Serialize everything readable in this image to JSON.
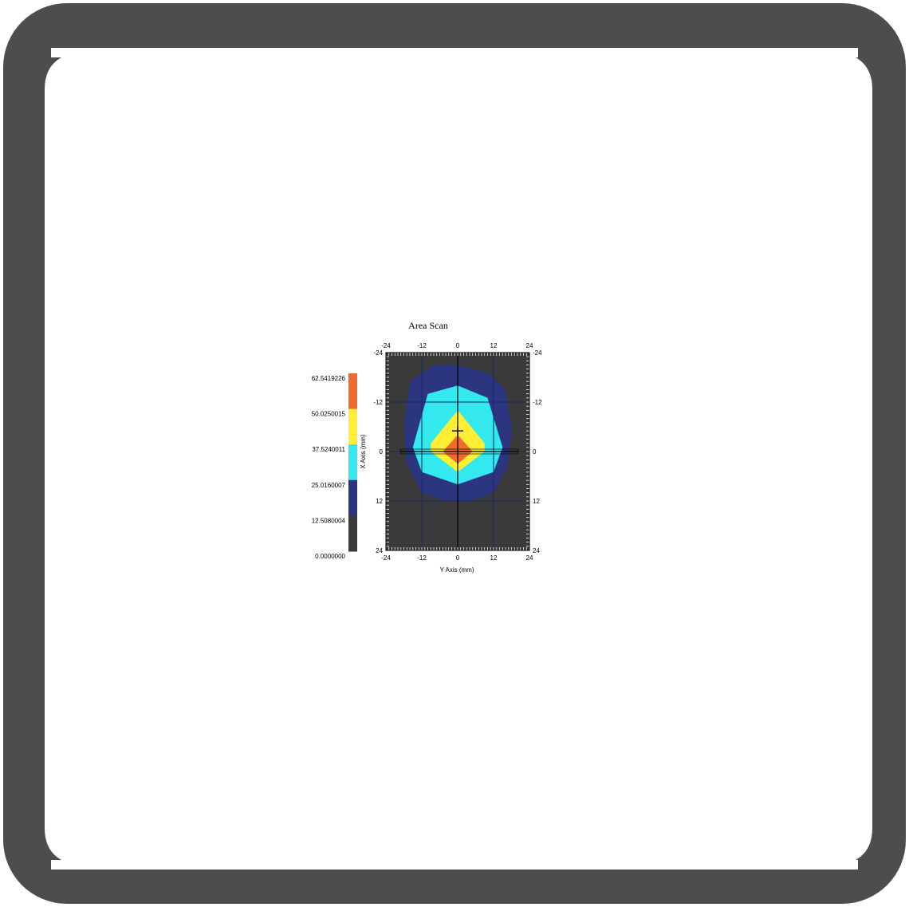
{
  "colors": {
    "frame": "#4d4d4d",
    "background": "#ffffff",
    "plot_background": "#3a3a3a",
    "levels": [
      "#3a3a3a",
      "#2c3580",
      "#33e8ee",
      "#ffee33",
      "#f06a2e"
    ]
  },
  "chart_data": {
    "type": "heatmap",
    "title": "Area Scan",
    "xlabel": "Y Axis (mm)",
    "ylabel": "X Axis (mm)",
    "xlim": [
      -24,
      24
    ],
    "ylim": [
      -24,
      24
    ],
    "x_ticks": [
      "-24",
      "-12",
      "0",
      "12",
      "24"
    ],
    "y_ticks": [
      "-24",
      "-12",
      "0",
      "12",
      "24"
    ],
    "colorbar_labels": [
      "62.5419226",
      "50.0250015",
      "37.5240011",
      "25.0160007",
      "12.5080004",
      "0.0000000"
    ],
    "colorbar_levels": [
      0,
      12.508,
      25.016,
      37.524,
      50.025,
      62.542
    ],
    "grid": true,
    "contours": [
      {
        "level": 12.508,
        "points": [
          [
            -16,
            -17
          ],
          [
            -8,
            -21
          ],
          [
            0,
            -21
          ],
          [
            10,
            -19
          ],
          [
            16,
            -15
          ],
          [
            18,
            -6
          ],
          [
            17,
            3
          ],
          [
            12,
            10
          ],
          [
            4,
            12
          ],
          [
            -4,
            12
          ],
          [
            -12,
            10
          ],
          [
            -17,
            3
          ],
          [
            -18,
            -6
          ]
        ]
      },
      {
        "level": 25.016,
        "points": [
          [
            -10,
            -14
          ],
          [
            0,
            -16
          ],
          [
            10,
            -13
          ],
          [
            15,
            -1
          ],
          [
            12,
            5
          ],
          [
            0,
            8
          ],
          [
            -12,
            5
          ],
          [
            -15,
            -1
          ]
        ]
      },
      {
        "level": 37.524,
        "points": [
          [
            0,
            -10
          ],
          [
            9,
            -2
          ],
          [
            9,
            0
          ],
          [
            0,
            5
          ],
          [
            -9,
            0
          ],
          [
            -9,
            -2
          ]
        ]
      },
      {
        "level": 50.025,
        "points": [
          [
            0,
            -4
          ],
          [
            5,
            0
          ],
          [
            0,
            3
          ],
          [
            -5,
            0
          ]
        ]
      }
    ],
    "marker": [
      0,
      -5
    ]
  }
}
